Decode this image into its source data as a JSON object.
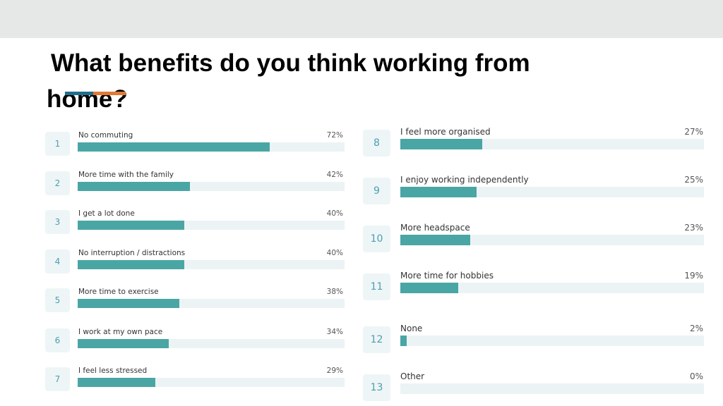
{
  "slide": {
    "title": "What benefits do you think working from home?"
  },
  "colors": {
    "bar_fill": "#4aa6a5",
    "bar_track": "#ecf3f4",
    "number_box": "#eef5f6",
    "number_text": "#4b9fb0",
    "title_accent_blue": "#1f6f8b",
    "title_accent_orange": "#e07a35"
  },
  "chart_data": {
    "type": "bar",
    "orientation": "horizontal",
    "title": "What benefits do you think working from home?",
    "xlim": [
      0,
      100
    ],
    "grid": false,
    "legend": "none",
    "items": [
      {
        "rank": "1",
        "label": "No commuting",
        "value": 72,
        "value_label": "72%"
      },
      {
        "rank": "2",
        "label": "More time with the family",
        "value": 42,
        "value_label": "42%"
      },
      {
        "rank": "3",
        "label": "I get a lot done",
        "value": 40,
        "value_label": "40%"
      },
      {
        "rank": "4",
        "label": "No interruption / distractions",
        "value": 40,
        "value_label": "40%"
      },
      {
        "rank": "5",
        "label": "More time to exercise",
        "value": 38,
        "value_label": "38%"
      },
      {
        "rank": "6",
        "label": "I work at my own pace",
        "value": 34,
        "value_label": "34%"
      },
      {
        "rank": "7",
        "label": "I feel less stressed",
        "value": 29,
        "value_label": "29%"
      },
      {
        "rank": "8",
        "label": "I feel more organised",
        "value": 27,
        "value_label": "27%"
      },
      {
        "rank": "9",
        "label": "I enjoy working independently",
        "value": 25,
        "value_label": "25%"
      },
      {
        "rank": "10",
        "label": "More headspace",
        "value": 23,
        "value_label": "23%"
      },
      {
        "rank": "11",
        "label": "More time for hobbies",
        "value": 19,
        "value_label": "19%"
      },
      {
        "rank": "12",
        "label": "None",
        "value": 2,
        "value_label": "2%"
      },
      {
        "rank": "13",
        "label": "Other",
        "value": 0,
        "value_label": "0%"
      }
    ]
  }
}
